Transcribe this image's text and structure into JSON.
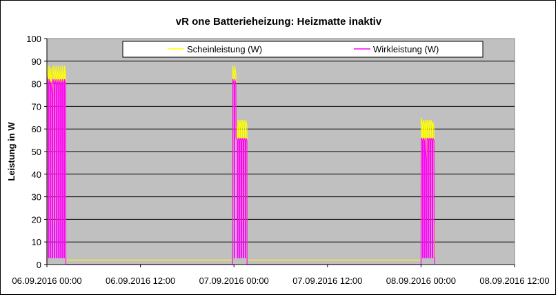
{
  "chart_data": {
    "type": "line",
    "title": "vR one Batterieheizung: Heizmatte inaktiv",
    "xlabel": "",
    "ylabel": "Leistung in W",
    "ylim": [
      0,
      100
    ],
    "yticks": [
      0,
      10,
      20,
      30,
      40,
      50,
      60,
      70,
      80,
      90,
      100
    ],
    "xlim": [
      "06.09.2016 00:00",
      "08.09.2016 12:00"
    ],
    "xticks": [
      "06.09.2016 00:00",
      "06.09.2016 12:00",
      "07.09.2016 00:00",
      "07.09.2016 12:00",
      "08.09.2016 00:00",
      "08.09.2016 12:00"
    ],
    "grid": "horizontal",
    "legend_position": "top",
    "plot_background": "#c0c0c0",
    "series": [
      {
        "name": "Scheinleistung (W)",
        "color": "#ffff00",
        "points": [
          [
            "06.09.2016 00:00",
            2
          ],
          [
            "06.09.2016 00:01",
            89
          ],
          [
            "06.09.2016 00:10",
            84
          ],
          [
            "06.09.2016 00:11",
            20
          ],
          [
            "06.09.2016 00:15",
            18
          ],
          [
            "06.09.2016 00:16",
            88
          ],
          [
            "06.09.2016 00:25",
            83
          ],
          [
            "06.09.2016 00:26",
            18
          ],
          [
            "06.09.2016 00:30",
            18
          ],
          [
            "06.09.2016 00:31",
            87
          ],
          [
            "06.09.2016 00:40",
            76
          ],
          [
            "06.09.2016 00:41",
            18
          ],
          [
            "06.09.2016 00:45",
            18
          ],
          [
            "06.09.2016 00:46",
            88
          ],
          [
            "06.09.2016 00:55",
            83
          ],
          [
            "06.09.2016 00:56",
            18
          ],
          [
            "06.09.2016 01:00",
            18
          ],
          [
            "06.09.2016 01:01",
            88
          ],
          [
            "06.09.2016 01:10",
            83
          ],
          [
            "06.09.2016 01:11",
            18
          ],
          [
            "06.09.2016 01:15",
            18
          ],
          [
            "06.09.2016 01:16",
            88
          ],
          [
            "06.09.2016 01:25",
            83
          ],
          [
            "06.09.2016 01:26",
            18
          ],
          [
            "06.09.2016 01:30",
            18
          ],
          [
            "06.09.2016 01:31",
            88
          ],
          [
            "06.09.2016 01:40",
            83
          ],
          [
            "06.09.2016 01:41",
            18
          ],
          [
            "06.09.2016 01:45",
            18
          ],
          [
            "06.09.2016 01:46",
            88
          ],
          [
            "06.09.2016 01:55",
            83
          ],
          [
            "06.09.2016 01:56",
            18
          ],
          [
            "06.09.2016 02:00",
            18
          ],
          [
            "06.09.2016 02:01",
            88
          ],
          [
            "06.09.2016 02:10",
            83
          ],
          [
            "06.09.2016 02:11",
            18
          ],
          [
            "06.09.2016 02:15",
            18
          ],
          [
            "06.09.2016 02:16",
            88
          ],
          [
            "06.09.2016 02:25",
            83
          ],
          [
            "06.09.2016 02:26",
            2
          ],
          [
            "06.09.2016 23:50",
            2
          ],
          [
            "06.09.2016 23:51",
            88
          ],
          [
            "07.09.2016 00:00",
            83
          ],
          [
            "07.09.2016 00:01",
            18
          ],
          [
            "07.09.2016 00:05",
            18
          ],
          [
            "07.09.2016 00:06",
            88
          ],
          [
            "07.09.2016 00:15",
            84
          ],
          [
            "07.09.2016 00:16",
            62
          ],
          [
            "07.09.2016 00:25",
            60
          ],
          [
            "07.09.2016 00:26",
            18
          ],
          [
            "07.09.2016 00:30",
            18
          ],
          [
            "07.09.2016 00:31",
            64
          ],
          [
            "07.09.2016 00:40",
            62
          ],
          [
            "07.09.2016 00:41",
            18
          ],
          [
            "07.09.2016 00:45",
            18
          ],
          [
            "07.09.2016 00:46",
            64
          ],
          [
            "07.09.2016 00:55",
            61
          ],
          [
            "07.09.2016 00:56",
            18
          ],
          [
            "07.09.2016 01:00",
            18
          ],
          [
            "07.09.2016 01:01",
            64
          ],
          [
            "07.09.2016 01:10",
            62
          ],
          [
            "07.09.2016 01:11",
            18
          ],
          [
            "07.09.2016 01:15",
            18
          ],
          [
            "07.09.2016 01:16",
            64
          ],
          [
            "07.09.2016 01:25",
            62
          ],
          [
            "07.09.2016 01:26",
            18
          ],
          [
            "07.09.2016 01:30",
            18
          ],
          [
            "07.09.2016 01:31",
            64
          ],
          [
            "07.09.2016 01:40",
            61
          ],
          [
            "07.09.2016 01:41",
            2
          ],
          [
            "08.09.2016 00:00",
            2
          ],
          [
            "08.09.2016 00:01",
            65
          ],
          [
            "08.09.2016 00:10",
            62
          ],
          [
            "08.09.2016 00:11",
            19
          ],
          [
            "08.09.2016 00:15",
            18
          ],
          [
            "08.09.2016 00:16",
            64
          ],
          [
            "08.09.2016 00:25",
            62
          ],
          [
            "08.09.2016 00:26",
            18
          ],
          [
            "08.09.2016 00:30",
            18
          ],
          [
            "08.09.2016 00:31",
            64
          ],
          [
            "08.09.2016 00:40",
            62
          ],
          [
            "08.09.2016 00:41",
            18
          ],
          [
            "08.09.2016 00:45",
            18
          ],
          [
            "08.09.2016 00:46",
            64
          ],
          [
            "08.09.2016 00:55",
            62
          ],
          [
            "08.09.2016 00:56",
            18
          ],
          [
            "08.09.2016 01:00",
            18
          ],
          [
            "08.09.2016 01:01",
            64
          ],
          [
            "08.09.2016 01:10",
            62
          ],
          [
            "08.09.2016 01:11",
            18
          ],
          [
            "08.09.2016 01:15",
            18
          ],
          [
            "08.09.2016 01:16",
            64
          ],
          [
            "08.09.2016 01:25",
            62
          ],
          [
            "08.09.2016 01:26",
            18
          ],
          [
            "08.09.2016 01:30",
            18
          ],
          [
            "08.09.2016 01:31",
            63
          ],
          [
            "08.09.2016 01:40",
            61
          ],
          [
            "08.09.2016 01:41",
            18
          ],
          [
            "08.09.2016 01:44",
            18
          ],
          [
            "08.09.2016 01:45",
            2
          ]
        ]
      },
      {
        "name": "Wirkleistung (W)",
        "color": "#ff00ff",
        "points": [
          [
            "06.09.2016 00:00",
            0
          ],
          [
            "06.09.2016 00:01",
            83
          ],
          [
            "06.09.2016 00:10",
            80
          ],
          [
            "06.09.2016 00:11",
            3
          ],
          [
            "06.09.2016 00:15",
            3
          ],
          [
            "06.09.2016 00:16",
            82
          ],
          [
            "06.09.2016 00:25",
            80
          ],
          [
            "06.09.2016 00:26",
            3
          ],
          [
            "06.09.2016 00:30",
            3
          ],
          [
            "06.09.2016 00:31",
            81
          ],
          [
            "06.09.2016 00:40",
            76
          ],
          [
            "06.09.2016 00:41",
            3
          ],
          [
            "06.09.2016 00:45",
            3
          ],
          [
            "06.09.2016 00:46",
            82
          ],
          [
            "06.09.2016 00:55",
            80
          ],
          [
            "06.09.2016 00:56",
            3
          ],
          [
            "06.09.2016 01:00",
            3
          ],
          [
            "06.09.2016 01:01",
            82
          ],
          [
            "06.09.2016 01:10",
            80
          ],
          [
            "06.09.2016 01:11",
            3
          ],
          [
            "06.09.2016 01:15",
            3
          ],
          [
            "06.09.2016 01:16",
            82
          ],
          [
            "06.09.2016 01:25",
            80
          ],
          [
            "06.09.2016 01:26",
            3
          ],
          [
            "06.09.2016 01:30",
            3
          ],
          [
            "06.09.2016 01:31",
            82
          ],
          [
            "06.09.2016 01:40",
            80
          ],
          [
            "06.09.2016 01:41",
            3
          ],
          [
            "06.09.2016 01:45",
            3
          ],
          [
            "06.09.2016 01:46",
            82
          ],
          [
            "06.09.2016 01:55",
            80
          ],
          [
            "06.09.2016 01:56",
            3
          ],
          [
            "06.09.2016 02:00",
            3
          ],
          [
            "06.09.2016 02:01",
            82
          ],
          [
            "06.09.2016 02:10",
            80
          ],
          [
            "06.09.2016 02:11",
            3
          ],
          [
            "06.09.2016 02:15",
            3
          ],
          [
            "06.09.2016 02:16",
            82
          ],
          [
            "06.09.2016 02:25",
            80
          ],
          [
            "06.09.2016 02:26",
            0
          ],
          [
            "06.09.2016 23:50",
            0
          ],
          [
            "06.09.2016 23:51",
            82
          ],
          [
            "07.09.2016 00:00",
            80
          ],
          [
            "07.09.2016 00:01",
            3
          ],
          [
            "07.09.2016 00:05",
            3
          ],
          [
            "07.09.2016 00:06",
            82
          ],
          [
            "07.09.2016 00:15",
            80
          ],
          [
            "07.09.2016 00:16",
            56
          ],
          [
            "07.09.2016 00:25",
            55
          ],
          [
            "07.09.2016 00:26",
            3
          ],
          [
            "07.09.2016 00:30",
            3
          ],
          [
            "07.09.2016 00:31",
            56
          ],
          [
            "07.09.2016 00:40",
            55
          ],
          [
            "07.09.2016 00:41",
            3
          ],
          [
            "07.09.2016 00:45",
            3
          ],
          [
            "07.09.2016 00:46",
            56
          ],
          [
            "07.09.2016 00:55",
            55
          ],
          [
            "07.09.2016 00:56",
            3
          ],
          [
            "07.09.2016 01:00",
            3
          ],
          [
            "07.09.2016 01:01",
            56
          ],
          [
            "07.09.2016 01:10",
            55
          ],
          [
            "07.09.2016 01:11",
            3
          ],
          [
            "07.09.2016 01:15",
            3
          ],
          [
            "07.09.2016 01:16",
            56
          ],
          [
            "07.09.2016 01:25",
            55
          ],
          [
            "07.09.2016 01:26",
            3
          ],
          [
            "07.09.2016 01:30",
            3
          ],
          [
            "07.09.2016 01:31",
            56
          ],
          [
            "07.09.2016 01:40",
            55
          ],
          [
            "07.09.2016 01:41",
            0
          ],
          [
            "08.09.2016 00:00",
            0
          ],
          [
            "08.09.2016 00:01",
            56
          ],
          [
            "08.09.2016 00:10",
            55
          ],
          [
            "08.09.2016 00:11",
            3
          ],
          [
            "08.09.2016 00:15",
            3
          ],
          [
            "08.09.2016 00:16",
            56
          ],
          [
            "08.09.2016 00:25",
            55
          ],
          [
            "08.09.2016 00:26",
            3
          ],
          [
            "08.09.2016 00:30",
            3
          ],
          [
            "08.09.2016 00:31",
            56
          ],
          [
            "08.09.2016 00:40",
            46
          ],
          [
            "08.09.2016 00:41",
            3
          ],
          [
            "08.09.2016 00:45",
            3
          ],
          [
            "08.09.2016 00:46",
            56
          ],
          [
            "08.09.2016 00:55",
            55
          ],
          [
            "08.09.2016 00:56",
            3
          ],
          [
            "08.09.2016 01:00",
            3
          ],
          [
            "08.09.2016 01:01",
            56
          ],
          [
            "08.09.2016 01:10",
            55
          ],
          [
            "08.09.2016 01:11",
            3
          ],
          [
            "08.09.2016 01:15",
            3
          ],
          [
            "08.09.2016 01:16",
            56
          ],
          [
            "08.09.2016 01:25",
            55
          ],
          [
            "08.09.2016 01:26",
            3
          ],
          [
            "08.09.2016 01:30",
            3
          ],
          [
            "08.09.2016 01:31",
            56
          ],
          [
            "08.09.2016 01:40",
            55
          ],
          [
            "08.09.2016 01:41",
            3
          ],
          [
            "08.09.2016 01:44",
            3
          ],
          [
            "08.09.2016 01:45",
            0
          ]
        ]
      }
    ]
  }
}
